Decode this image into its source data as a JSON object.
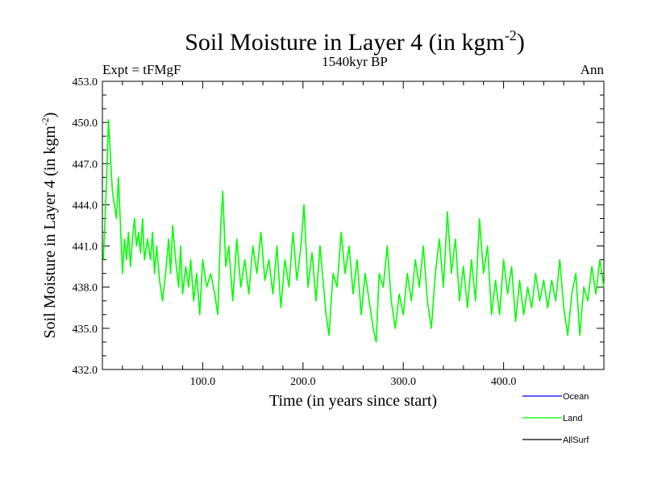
{
  "chart_data": {
    "type": "line",
    "title": "Soil Moisture in Layer 4 (in kgm",
    "title_sup": "-2",
    "title_close": ")",
    "subtitle_left": "Expt = tFMgF",
    "subtitle_center": "1540kyr BP",
    "subtitle_right": "Ann",
    "xlabel": "Time (in years since start)",
    "ylabel": "Soil Moisture in Layer 4 (in kgm",
    "ylabel_sup": "-2",
    "ylabel_close": ")",
    "xlim": [
      0,
      500
    ],
    "ylim": [
      432.0,
      453.0
    ],
    "xticks": [
      100,
      200,
      300,
      400
    ],
    "xtick_labels": [
      "100.0",
      "200.0",
      "300.0",
      "400.0"
    ],
    "yticks": [
      432,
      435,
      438,
      441,
      444,
      447,
      450,
      453
    ],
    "ytick_labels": [
      "432.0",
      "435.0",
      "438.0",
      "441.0",
      "444.0",
      "447.0",
      "450.0",
      "453.0"
    ],
    "legend_position": "bottom-right",
    "series": [
      {
        "name": "Ocean",
        "color": "#0000ff",
        "values": []
      },
      {
        "name": "Land",
        "color": "#00ff00",
        "values": [
          [
            1,
            440.0
          ],
          [
            4,
            445.5
          ],
          [
            6,
            450.2
          ],
          [
            8,
            447.5
          ],
          [
            10,
            445.0
          ],
          [
            12,
            444.0
          ],
          [
            14,
            443.0
          ],
          [
            16,
            446.0
          ],
          [
            18,
            442.5
          ],
          [
            20,
            439.0
          ],
          [
            22,
            441.5
          ],
          [
            24,
            440.0
          ],
          [
            26,
            442.0
          ],
          [
            28,
            439.5
          ],
          [
            30,
            441.5
          ],
          [
            32,
            443.0
          ],
          [
            34,
            441.0
          ],
          [
            36,
            442.0
          ],
          [
            38,
            440.5
          ],
          [
            40,
            443.0
          ],
          [
            42,
            440.0
          ],
          [
            45,
            441.5
          ],
          [
            48,
            440.0
          ],
          [
            50,
            442.0
          ],
          [
            52,
            439.0
          ],
          [
            54,
            441.0
          ],
          [
            57,
            438.5
          ],
          [
            60,
            437.0
          ],
          [
            63,
            439.0
          ],
          [
            66,
            441.5
          ],
          [
            68,
            439.0
          ],
          [
            70,
            442.5
          ],
          [
            73,
            440.0
          ],
          [
            76,
            438.0
          ],
          [
            78,
            441.0
          ],
          [
            80,
            437.5
          ],
          [
            83,
            439.5
          ],
          [
            86,
            438.0
          ],
          [
            88,
            440.0
          ],
          [
            91,
            437.0
          ],
          [
            94,
            439.0
          ],
          [
            97,
            436.0
          ],
          [
            100,
            440.0
          ],
          [
            104,
            438.0
          ],
          [
            108,
            439.0
          ],
          [
            112,
            437.5
          ],
          [
            115,
            436.0
          ],
          [
            118,
            442.5
          ],
          [
            120,
            445.0
          ],
          [
            123,
            439.5
          ],
          [
            126,
            441.0
          ],
          [
            130,
            437.0
          ],
          [
            134,
            441.5
          ],
          [
            138,
            438.0
          ],
          [
            142,
            440.0
          ],
          [
            146,
            437.5
          ],
          [
            150,
            441.0
          ],
          [
            154,
            439.0
          ],
          [
            158,
            442.0
          ],
          [
            162,
            438.5
          ],
          [
            166,
            440.0
          ],
          [
            170,
            437.5
          ],
          [
            174,
            441.0
          ],
          [
            178,
            436.5
          ],
          [
            182,
            440.0
          ],
          [
            186,
            438.0
          ],
          [
            190,
            442.0
          ],
          [
            194,
            438.5
          ],
          [
            198,
            441.0
          ],
          [
            201,
            444.0
          ],
          [
            205,
            438.0
          ],
          [
            209,
            440.5
          ],
          [
            213,
            437.0
          ],
          [
            217,
            441.0
          ],
          [
            220,
            438.5
          ],
          [
            223,
            436.0
          ],
          [
            226,
            434.5
          ],
          [
            230,
            439.0
          ],
          [
            234,
            438.0
          ],
          [
            238,
            442.0
          ],
          [
            242,
            439.0
          ],
          [
            246,
            441.0
          ],
          [
            250,
            437.5
          ],
          [
            254,
            440.0
          ],
          [
            258,
            436.0
          ],
          [
            262,
            439.0
          ],
          [
            266,
            437.0
          ],
          [
            270,
            435.0
          ],
          [
            273,
            434.0
          ],
          [
            276,
            439.0
          ],
          [
            280,
            438.0
          ],
          [
            284,
            441.0
          ],
          [
            288,
            437.0
          ],
          [
            292,
            435.0
          ],
          [
            296,
            437.5
          ],
          [
            300,
            436.0
          ],
          [
            304,
            439.0
          ],
          [
            308,
            437.0
          ],
          [
            312,
            440.0
          ],
          [
            316,
            438.0
          ],
          [
            320,
            441.0
          ],
          [
            324,
            437.0
          ],
          [
            328,
            435.0
          ],
          [
            332,
            439.0
          ],
          [
            336,
            441.5
          ],
          [
            340,
            438.0
          ],
          [
            344,
            443.5
          ],
          [
            348,
            439.0
          ],
          [
            352,
            441.5
          ],
          [
            356,
            437.0
          ],
          [
            360,
            439.5
          ],
          [
            364,
            436.5
          ],
          [
            368,
            440.0
          ],
          [
            372,
            437.0
          ],
          [
            376,
            443.0
          ],
          [
            380,
            439.0
          ],
          [
            384,
            441.0
          ],
          [
            388,
            436.0
          ],
          [
            392,
            438.5
          ],
          [
            396,
            436.0
          ],
          [
            400,
            440.0
          ],
          [
            404,
            437.5
          ],
          [
            408,
            439.5
          ],
          [
            412,
            435.5
          ],
          [
            416,
            438.5
          ],
          [
            420,
            436.0
          ],
          [
            424,
            438.0
          ],
          [
            428,
            436.5
          ],
          [
            432,
            439.0
          ],
          [
            436,
            437.0
          ],
          [
            440,
            438.5
          ],
          [
            444,
            436.5
          ],
          [
            448,
            438.5
          ],
          [
            452,
            437.0
          ],
          [
            456,
            440.0
          ],
          [
            460,
            436.5
          ],
          [
            464,
            434.5
          ],
          [
            468,
            437.5
          ],
          [
            472,
            439.0
          ],
          [
            476,
            434.5
          ],
          [
            480,
            438.0
          ],
          [
            484,
            437.0
          ],
          [
            488,
            439.5
          ],
          [
            492,
            437.5
          ],
          [
            496,
            440.0
          ],
          [
            500,
            438.0
          ]
        ]
      },
      {
        "name": "AllSurf",
        "color": "#000000",
        "values": []
      }
    ]
  }
}
